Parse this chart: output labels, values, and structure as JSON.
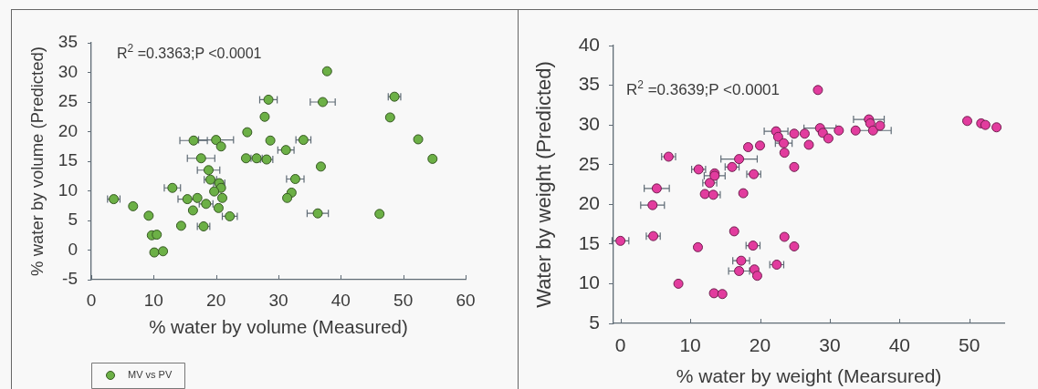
{
  "chart_data": [
    {
      "type": "scatter",
      "xlabel": "% water by volume (Measured)",
      "ylabel": "% water by volume (Predicted)",
      "annotations": [
        "R$^{2}$ =0.3363;P <0.0001"
      ],
      "xlim": [
        0,
        60
      ],
      "xticks": [
        0,
        10,
        20,
        30,
        40,
        50,
        60
      ],
      "ylim": [
        -5,
        35
      ],
      "yticks": [
        -5,
        0,
        5,
        10,
        15,
        20,
        25,
        30,
        35
      ],
      "legend": "bottom left",
      "marker": "circle",
      "series": [
        {
          "name": "MV vs PV",
          "color": "#6cb046",
          "x": [
            28.4,
            27.8,
            25.0,
            16.4,
            20.0,
            20.8,
            28.7,
            34.0,
            31.2,
            17.6,
            24.8,
            26.5,
            28.1,
            18.8,
            19.1,
            20.5,
            20.8,
            19.7,
            13.0,
            3.6,
            6.7,
            9.2,
            15.4,
            17.0,
            18.4,
            20.4,
            21.0,
            16.3,
            22.2,
            14.4,
            18.0,
            9.7,
            10.5,
            10.1,
            11.5,
            32.7,
            32.1,
            31.4,
            37.8,
            37.1,
            48.6,
            47.9,
            52.4,
            54.7,
            36.8,
            36.3,
            46.2
          ],
          "values": [
            25.4,
            22.5,
            19.9,
            18.5,
            18.6,
            17.5,
            18.5,
            18.6,
            16.9,
            15.5,
            15.5,
            15.5,
            15.3,
            13.5,
            11.9,
            11.3,
            10.5,
            9.9,
            10.5,
            8.6,
            7.4,
            5.8,
            8.6,
            8.8,
            7.8,
            7.1,
            8.8,
            6.7,
            5.7,
            4.1,
            4.0,
            2.5,
            2.6,
            -0.4,
            -0.2,
            12.0,
            9.7,
            8.8,
            30.2,
            25.0,
            25.9,
            22.4,
            18.7,
            15.4,
            14.1,
            6.2,
            6.1
          ],
          "xerrors": [
            1.4,
            null,
            null,
            2.2,
            2.8,
            null,
            null,
            1.2,
            1.3,
            2.2,
            null,
            0.9,
            1.0,
            1.8,
            1.0,
            0.9,
            null,
            null,
            1.3,
            1.0,
            null,
            null,
            1.5,
            null,
            1.1,
            null,
            null,
            null,
            1.2,
            null,
            1.0,
            null,
            null,
            null,
            null,
            1.4,
            null,
            null,
            null,
            2.0,
            1.0,
            null,
            null,
            null,
            null,
            1.7,
            null
          ]
        }
      ]
    },
    {
      "type": "scatter",
      "xlabel": "% water by weight (Mearsured)",
      "ylabel": "Water by weight (Predicted)",
      "annotations": [
        "R$^{2}$ =0.3639;P <0.0001"
      ],
      "xlim": [
        -1,
        55
      ],
      "xticks": [
        0,
        10,
        20,
        30,
        40,
        50
      ],
      "ylim": [
        5,
        40
      ],
      "yticks": [
        5,
        10,
        15,
        20,
        25,
        30,
        35,
        40
      ],
      "marker": "circle",
      "series": [
        {
          "color": "#e23c9e",
          "x": [
            0.0,
            4.6,
            5.2,
            4.7,
            6.9,
            8.3,
            11.2,
            11.1,
            12.1,
            12.8,
            13.5,
            13.5,
            13.3,
            13.4,
            14.6,
            16.0,
            17.0,
            18.3,
            20.0,
            19.1,
            17.6,
            16.3,
            19.0,
            17.3,
            17.0,
            19.2,
            19.6,
            22.4,
            22.3,
            22.6,
            23.4,
            23.5,
            23.5,
            24.9,
            24.9,
            24.9,
            26.4,
            27.0,
            28.3,
            28.6,
            29.0,
            29.8,
            31.3,
            33.7,
            35.6,
            35.8,
            36.2,
            37.2,
            49.7,
            51.7,
            52.3,
            53.9
          ],
          "values": [
            15.4,
            19.9,
            22.0,
            16.0,
            26.0,
            10.0,
            24.4,
            14.6,
            21.3,
            22.7,
            23.9,
            23.6,
            21.2,
            8.8,
            8.7,
            24.7,
            25.7,
            27.2,
            27.4,
            23.8,
            21.4,
            16.6,
            14.8,
            12.9,
            11.6,
            11.8,
            11.0,
            12.4,
            29.2,
            28.5,
            27.7,
            26.5,
            15.9,
            24.7,
            28.9,
            14.7,
            28.9,
            27.5,
            34.4,
            29.6,
            29.0,
            28.3,
            29.3,
            29.3,
            30.7,
            30.2,
            29.3,
            29.9,
            30.5,
            30.2,
            30.0,
            29.7
          ],
          "xerrors": [
            1.2,
            1.7,
            1.8,
            1.0,
            1.0,
            null,
            1.0,
            null,
            null,
            1.0,
            null,
            1.5,
            1.0,
            null,
            null,
            1.0,
            2.6,
            null,
            null,
            1.0,
            null,
            null,
            1.0,
            1.2,
            1.5,
            null,
            null,
            1.0,
            1.7,
            null,
            1.2,
            null,
            null,
            null,
            null,
            null,
            null,
            null,
            null,
            2.3,
            null,
            null,
            null,
            null,
            2.2,
            null,
            2.6,
            null,
            null,
            null,
            null,
            null
          ]
        }
      ]
    }
  ]
}
